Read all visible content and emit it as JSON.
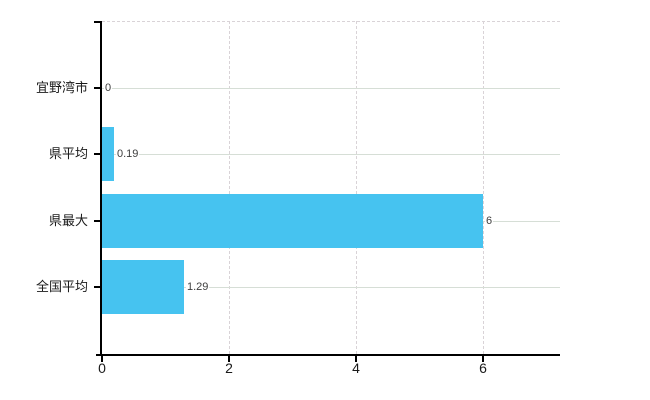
{
  "chart_data": {
    "type": "bar",
    "orientation": "horizontal",
    "title": "",
    "xlabel": "",
    "ylabel": "",
    "categories": [
      "宜野湾市",
      "県平均",
      "県最大",
      "全国平均"
    ],
    "values": [
      0,
      0.19,
      6,
      1.29
    ],
    "value_labels": [
      "0",
      "0.19",
      "6",
      "1.29"
    ],
    "x_ticks": [
      0,
      2,
      4,
      6
    ],
    "x_tick_labels": [
      "0",
      "2",
      "4",
      "6"
    ],
    "xlim": [
      0,
      7.2
    ],
    "grid": true,
    "legend": false,
    "bar_color": "#46c3f0",
    "grid_color_horizontal": "#d6ded6",
    "grid_color_vertical": "#d9d3d7",
    "axis_color": "#000000",
    "value_label_color": "#3d3d3d",
    "tick_label_color": "#1a1a1a"
  }
}
